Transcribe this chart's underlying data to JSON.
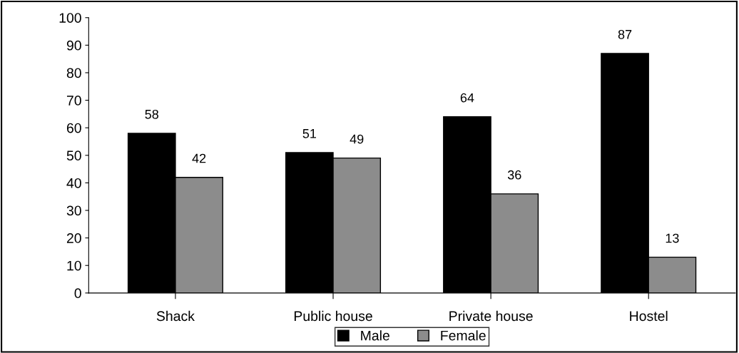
{
  "chart_data": {
    "type": "bar",
    "categories": [
      "Shack",
      "Public house",
      "Private house",
      "Hostel"
    ],
    "series": [
      {
        "name": "Male",
        "color": "#000000",
        "values": [
          58,
          51,
          64,
          87
        ]
      },
      {
        "name": "Female",
        "color": "#8c8c8c",
        "values": [
          42,
          49,
          36,
          13
        ]
      }
    ],
    "ylim": [
      0,
      100
    ],
    "yticks": [
      0,
      10,
      20,
      30,
      40,
      50,
      60,
      70,
      80,
      90,
      100
    ],
    "grid": false,
    "legend": "bottom",
    "data_labels": true
  }
}
